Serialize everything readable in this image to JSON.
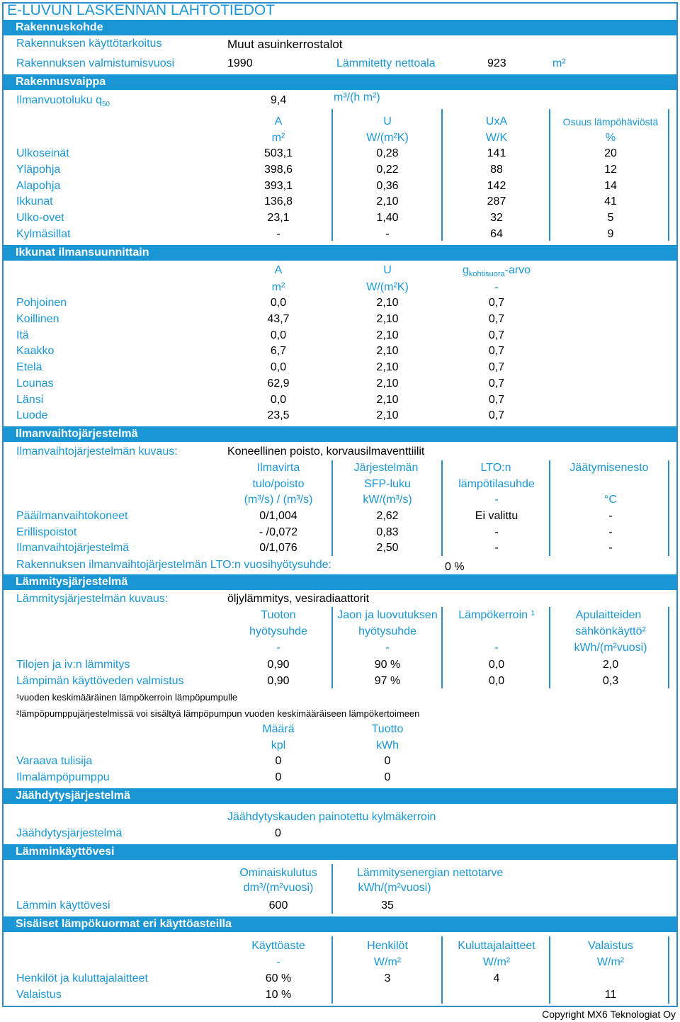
{
  "title": "E-LUVUN LASKENNAN LÄHTÖTIEDOT",
  "s_building": "Rakennuskohde",
  "use_label": "Rakennuksen käyttötarkoitus",
  "use_value": "Muut asuinkerrostalot",
  "year_label": "Rakennuksen valmistumisvuosi",
  "year_value": "1990",
  "area_label": "Lämmitetty nettoala",
  "area_value": "923",
  "area_unit": "m²",
  "s_envelope": "Rakennusvaippa",
  "leak_label": "Ilmanvuotoluku q",
  "leak_sub": "50",
  "leak_value": "9,4",
  "leak_unit": "m³/(h m²)",
  "env_headers": [
    "A",
    "U",
    "UxA",
    "Osuus lämpöhäviöstä"
  ],
  "env_units": [
    "m²",
    "W/(m²K)",
    "W/K",
    "%"
  ],
  "env_rows": [
    {
      "name": "Ulkoseinät",
      "v": [
        "503,1",
        "0,28",
        "141",
        "20"
      ]
    },
    {
      "name": "Yläpohja",
      "v": [
        "398,6",
        "0,22",
        "88",
        "12"
      ]
    },
    {
      "name": "Alapohja",
      "v": [
        "393,1",
        "0,36",
        "142",
        "14"
      ]
    },
    {
      "name": "Ikkunat",
      "v": [
        "136,8",
        "2,10",
        "287",
        "41"
      ]
    },
    {
      "name": "Ulko-ovet",
      "v": [
        "23,1",
        "1,40",
        "32",
        "5"
      ]
    },
    {
      "name": "Kylmäsillat",
      "v": [
        "-",
        "-",
        "64",
        "9"
      ]
    }
  ],
  "s_windows": "Ikkunat ilmansuunnittain",
  "win_headers": [
    "A",
    "U",
    "g",
    "kohtisuora",
    "-arvo"
  ],
  "win_units": [
    "m²",
    "W/(m²K)",
    "-"
  ],
  "win_rows": [
    {
      "name": "Pohjoinen",
      "v": [
        "0,0",
        "2,10",
        "0,7"
      ]
    },
    {
      "name": "Koillinen",
      "v": [
        "43,7",
        "2,10",
        "0,7"
      ]
    },
    {
      "name": "Itä",
      "v": [
        "0,0",
        "2,10",
        "0,7"
      ]
    },
    {
      "name": "Kaakko",
      "v": [
        "6,7",
        "2,10",
        "0,7"
      ]
    },
    {
      "name": "Etelä",
      "v": [
        "0,0",
        "2,10",
        "0,7"
      ]
    },
    {
      "name": "Lounas",
      "v": [
        "62,9",
        "2,10",
        "0,7"
      ]
    },
    {
      "name": "Länsi",
      "v": [
        "0,0",
        "2,10",
        "0,7"
      ]
    },
    {
      "name": "Luode",
      "v": [
        "23,5",
        "2,10",
        "0,7"
      ]
    }
  ],
  "s_vent": "Ilmanvaihtojärjestelmä",
  "vent_desc_label": "Ilmanvaihtojärjestelmän kuvaus:",
  "vent_desc": "Koneellinen poisto, korvausilmaventtiilit",
  "vent_h1": [
    "Ilmavirta",
    "Järjestelmän",
    "LTO:n",
    "Jäätymisenesto"
  ],
  "vent_h2": [
    "tulo/poisto",
    "SFP-luku",
    "lämpötilasuhde",
    ""
  ],
  "vent_h3": [
    "(m³/s) / (m³/s)",
    "kW/(m³/s)",
    "-",
    "°C"
  ],
  "vent_rows": [
    {
      "name": "Pääilmanvaihtokoneet",
      "v": [
        "0/1,004",
        "2,62",
        "Ei valittu",
        "-"
      ]
    },
    {
      "name": "Erillispoistot",
      "v": [
        "- /0,072",
        "0,83",
        "-",
        "-"
      ]
    },
    {
      "name": "Ilmanvaihtojärjestelmä",
      "v": [
        "0/1,076",
        "2,50",
        "-",
        "-"
      ]
    }
  ],
  "lto_label": "Rakennuksen ilmanvaihtojärjestelmän LTO:n vuosihyötysuhde:",
  "lto_value": "0 %",
  "s_heat": "Lämmitysjärjestelmä",
  "heat_desc_label": "Lämmitysjärjestelmän kuvaus:",
  "heat_desc": "öljylämmitys, vesiradiaattorit",
  "heat_h1": [
    "Tuoton",
    "Jaon ja luovutuksen",
    "Lämpökerroin ¹",
    "Apulaitteiden"
  ],
  "heat_h2": [
    "hyötysuhde",
    "hyötysuhde",
    "",
    "sähkönkäyttö²"
  ],
  "heat_h3": [
    "-",
    "-",
    "-",
    "kWh/(m²vuosi)"
  ],
  "heat_rows": [
    {
      "name": "Tilojen ja iv:n lämmitys",
      "v": [
        "0,90",
        "90 %",
        "0,0",
        "2,0"
      ]
    },
    {
      "name": "Lämpimän käyttöveden valmistus",
      "v": [
        "0,90",
        "97 %",
        "0,0",
        "0,3"
      ]
    }
  ],
  "note1": "¹vuoden keskimääräinen lämpökerroin lämpöpumpulle",
  "note2": "²lämpöpumppujärjestelmissä voi sisältyä lämpöpumpun vuoden keskimääräiseen lämpökertoimeen",
  "aux_h1": [
    "Määrä",
    "Tuotto"
  ],
  "aux_h2": [
    "kpl",
    "kWh"
  ],
  "aux_rows": [
    {
      "name": "Varaava tulisija",
      "v": [
        "0",
        "0"
      ]
    },
    {
      "name": "Ilmalämpöpumppu",
      "v": [
        "0",
        "0"
      ]
    }
  ],
  "s_cool": "Jäähdytysjärjestelmä",
  "cool_header": "Jäähdytyskauden painotettu kylmäkerroin",
  "cool_row_name": "Jäähdytysjärjestelmä",
  "cool_row_value": "0",
  "s_dhw": "Lämminkäyttövesi",
  "dhw_h1": [
    "Ominaiskulutus",
    "Lämmitysenergian nettotarve"
  ],
  "dhw_h2": [
    "dm³/(m²vuosi)",
    "kWh/(m²vuosi)"
  ],
  "dhw_row_name": "Lämmin käyttövesi",
  "dhw_row_v": [
    "600",
    "35"
  ],
  "s_loads": "Sisäiset lämpökuormat eri käyttöasteilla",
  "load_h1": [
    "Käyttöaste",
    "Henkilöt",
    "Kuluttajalaitteet",
    "Valaistus"
  ],
  "load_h2": [
    "-",
    "W/m²",
    "W/m²",
    "W/m²"
  ],
  "load_rows": [
    {
      "name": "Henkilöt ja kuluttajalaitteet",
      "v": [
        "60 %",
        "3",
        "4",
        ""
      ]
    },
    {
      "name": "Valaistus",
      "v": [
        "10 %",
        "",
        "",
        "11"
      ]
    }
  ],
  "copyright": "Copyright MX6 Teknologiat Oy",
  "colors": {
    "accent": "#1a96d4",
    "border": "#2e8cc8"
  }
}
